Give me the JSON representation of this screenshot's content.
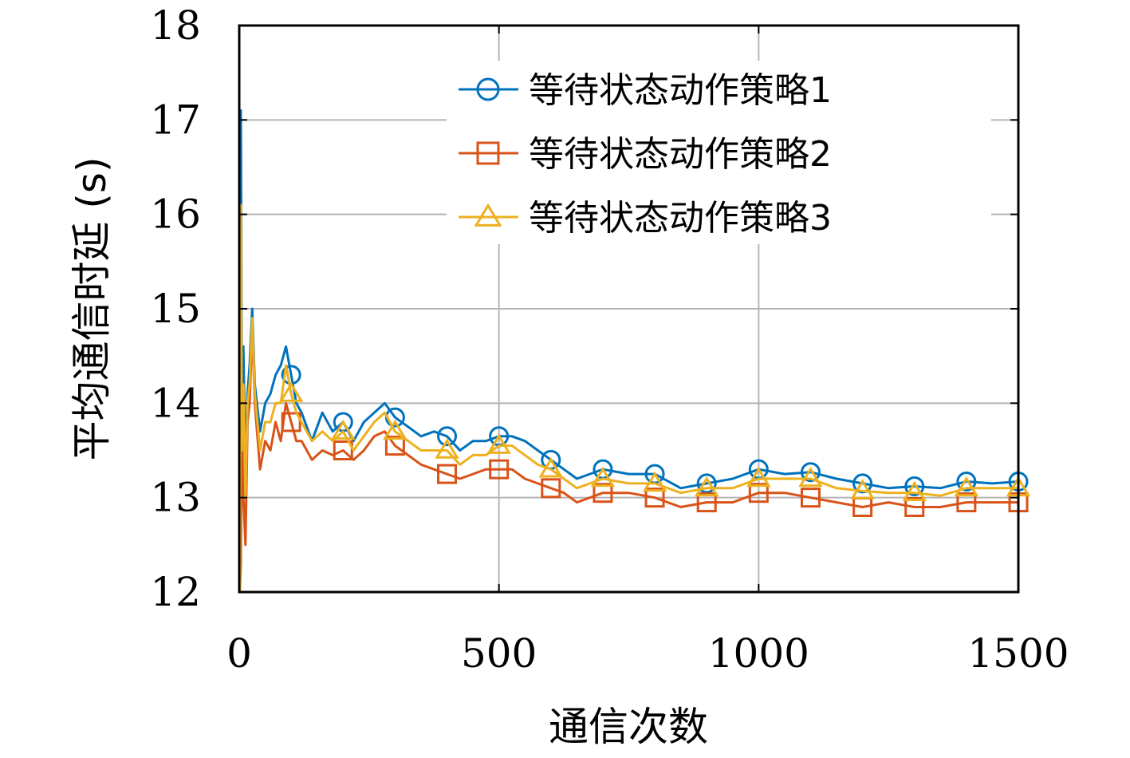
{
  "chart_data": {
    "type": "line",
    "title": "",
    "xlabel": "通信次数",
    "ylabel": "平均通信时延 (s)",
    "xlim": [
      0,
      1500
    ],
    "ylim": [
      12,
      18
    ],
    "xticks": [
      0,
      500,
      1000,
      1500
    ],
    "yticks": [
      12,
      13,
      14,
      15,
      16,
      17,
      18
    ],
    "xtick_labels": [
      "0",
      "500",
      "1000",
      "1500"
    ],
    "ytick_labels": [
      "12",
      "13",
      "14",
      "15",
      "16",
      "17",
      "18"
    ],
    "grid": true,
    "legend_position": "top-right",
    "x": [
      1,
      3,
      5,
      8,
      12,
      16,
      20,
      25,
      30,
      40,
      50,
      60,
      70,
      80,
      90,
      100,
      110,
      120,
      140,
      160,
      180,
      200,
      220,
      240,
      260,
      280,
      300,
      325,
      350,
      375,
      400,
      425,
      450,
      475,
      500,
      525,
      550,
      575,
      600,
      625,
      650,
      675,
      700,
      750,
      800,
      850,
      900,
      950,
      1000,
      1050,
      1100,
      1150,
      1200,
      1250,
      1300,
      1350,
      1400,
      1450,
      1500
    ],
    "series": [
      {
        "name": "等待状态动作策略1",
        "color": "#0072BD",
        "marker": "circle",
        "values": [
          12.0,
          17.1,
          14.0,
          14.6,
          13.3,
          14.1,
          14.4,
          15.0,
          14.2,
          13.7,
          14.0,
          14.1,
          14.3,
          14.4,
          14.6,
          14.3,
          14.0,
          13.9,
          13.6,
          13.9,
          13.7,
          13.8,
          13.6,
          13.8,
          13.9,
          14.0,
          13.85,
          13.75,
          13.65,
          13.7,
          13.65,
          13.5,
          13.6,
          13.6,
          13.65,
          13.65,
          13.6,
          13.5,
          13.4,
          13.3,
          13.2,
          13.25,
          13.3,
          13.25,
          13.25,
          13.1,
          13.15,
          13.2,
          13.3,
          13.25,
          13.27,
          13.2,
          13.15,
          13.1,
          13.12,
          13.1,
          13.17,
          13.15,
          13.17
        ]
      },
      {
        "name": "等待状态动作策略2",
        "color": "#D95319",
        "marker": "square",
        "values": [
          12.0,
          12.3,
          14.0,
          13.0,
          12.5,
          13.8,
          14.0,
          14.8,
          14.0,
          13.3,
          13.6,
          13.5,
          13.8,
          13.6,
          14.0,
          13.8,
          13.6,
          13.6,
          13.4,
          13.5,
          13.45,
          13.5,
          13.4,
          13.5,
          13.65,
          13.7,
          13.55,
          13.45,
          13.35,
          13.3,
          13.25,
          13.2,
          13.25,
          13.3,
          13.3,
          13.3,
          13.2,
          13.15,
          13.1,
          13.05,
          12.95,
          13.0,
          13.05,
          13.05,
          13.0,
          12.9,
          12.95,
          12.95,
          13.05,
          13.05,
          13.0,
          12.95,
          12.9,
          12.95,
          12.9,
          12.9,
          12.95,
          12.95,
          12.95
        ]
      },
      {
        "name": "等待状态动作策略3",
        "color": "#EDB120",
        "marker": "triangle",
        "values": [
          12.0,
          16.1,
          13.5,
          14.2,
          13.0,
          14.0,
          14.2,
          14.9,
          14.1,
          13.5,
          13.8,
          13.8,
          14.0,
          14.0,
          14.4,
          14.1,
          13.9,
          13.8,
          13.6,
          13.7,
          13.6,
          13.7,
          13.5,
          13.65,
          13.8,
          13.9,
          13.7,
          13.6,
          13.5,
          13.5,
          13.5,
          13.35,
          13.45,
          13.45,
          13.55,
          13.55,
          13.45,
          13.35,
          13.3,
          13.2,
          13.1,
          13.15,
          13.2,
          13.15,
          13.15,
          13.05,
          13.1,
          13.1,
          13.2,
          13.2,
          13.2,
          13.1,
          13.07,
          13.05,
          13.05,
          13.02,
          13.1,
          13.1,
          13.1
        ]
      }
    ]
  }
}
